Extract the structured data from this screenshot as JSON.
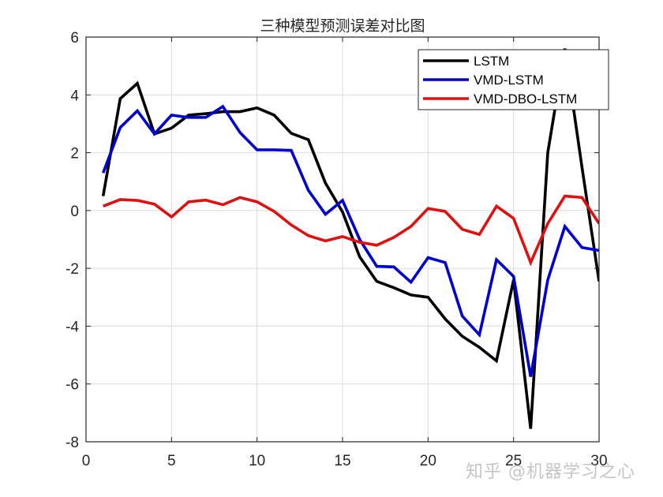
{
  "chart_data": {
    "type": "line",
    "title": "三种模型预测误差对比图",
    "xlabel": "",
    "ylabel": "",
    "xlim": [
      0,
      30
    ],
    "ylim": [
      -8,
      6
    ],
    "xticks": [
      0,
      5,
      10,
      15,
      20,
      25,
      30
    ],
    "yticks": [
      -8,
      -6,
      -4,
      -2,
      0,
      2,
      4,
      6
    ],
    "grid": true,
    "legend_position": "northeast",
    "x": [
      1,
      2,
      3,
      4,
      5,
      6,
      7,
      8,
      9,
      10,
      11,
      12,
      13,
      14,
      15,
      16,
      17,
      18,
      19,
      20,
      21,
      22,
      23,
      24,
      25,
      26,
      27,
      28,
      29,
      30
    ],
    "series": [
      {
        "name": "LSTM",
        "color": "#000000",
        "values": [
          0.5,
          3.87,
          4.4,
          2.65,
          2.85,
          3.3,
          3.35,
          3.42,
          3.42,
          3.55,
          3.3,
          2.67,
          2.45,
          0.95,
          -0.05,
          -1.6,
          -2.45,
          -2.67,
          -2.92,
          -3.0,
          -3.75,
          -4.35,
          -4.73,
          -5.2,
          -2.4,
          -7.55,
          2.0,
          5.6,
          1.5,
          -2.45
        ]
      },
      {
        "name": "VMD-LSTM",
        "color": "#0000d0",
        "values": [
          1.3,
          2.87,
          3.45,
          2.65,
          3.3,
          3.22,
          3.22,
          3.6,
          2.7,
          2.1,
          2.1,
          2.08,
          0.7,
          -0.13,
          0.35,
          -1.0,
          -1.93,
          -1.95,
          -2.48,
          -1.63,
          -1.8,
          -3.65,
          -4.3,
          -1.7,
          -2.28,
          -5.75,
          -2.4,
          -0.55,
          -1.28,
          -1.38
        ]
      },
      {
        "name": "VMD-DBO-LSTM",
        "color": "#e01010",
        "values": [
          0.15,
          0.38,
          0.35,
          0.22,
          -0.22,
          0.3,
          0.36,
          0.2,
          0.45,
          0.3,
          -0.03,
          -0.5,
          -0.87,
          -1.05,
          -0.9,
          -1.1,
          -1.2,
          -0.93,
          -0.55,
          0.07,
          -0.03,
          -0.65,
          -0.83,
          0.15,
          -0.27,
          -1.8,
          -0.45,
          0.5,
          0.45,
          -0.45
        ]
      }
    ]
  },
  "watermark": "知乎 @机器学习之心"
}
